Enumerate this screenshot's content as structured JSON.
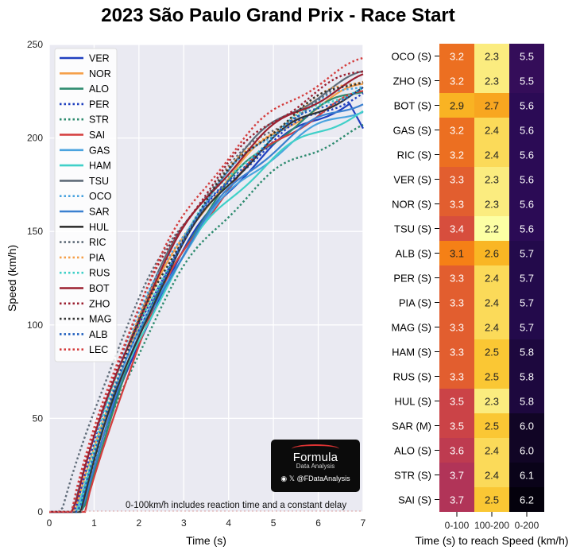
{
  "title": "2023 São Paulo Grand Prix - Race Start",
  "watermark": {
    "brand": "Formula",
    "sub": "Data Analysis",
    "handle": "@FDataAnalysis"
  },
  "note": "0-100km/h includes reaction time and a constant delay",
  "chart_data": [
    {
      "type": "line",
      "xlabel": "Time (s)",
      "ylabel": "Speed (km/h)",
      "xlim": [
        0,
        7
      ],
      "ylim": [
        0,
        250
      ],
      "xticks": [
        0,
        1,
        2,
        3,
        4,
        5,
        6,
        7
      ],
      "yticks": [
        0,
        50,
        100,
        150,
        200,
        250
      ],
      "grid": true,
      "legend": "top-left",
      "series": [
        {
          "name": "VER",
          "color": "#1f3fbf",
          "dash": "solid",
          "t0": 0.75,
          "end": 222,
          "drop": true
        },
        {
          "name": "NOR",
          "color": "#f5a04a",
          "dash": "solid",
          "t0": 0.6,
          "end": 228
        },
        {
          "name": "ALO",
          "color": "#2e8b6f",
          "dash": "solid",
          "t0": 0.75,
          "end": 226
        },
        {
          "name": "PER",
          "color": "#1f3fbf",
          "dash": "dot",
          "t0": 0.55,
          "end": 224
        },
        {
          "name": "STR",
          "color": "#2e8b6f",
          "dash": "dot",
          "t0": 0.7,
          "end": 205
        },
        {
          "name": "SAI",
          "color": "#d43d3d",
          "dash": "solid",
          "t0": 0.8,
          "end": 224
        },
        {
          "name": "GAS",
          "color": "#4aa3df",
          "dash": "solid",
          "t0": 0.6,
          "end": 216
        },
        {
          "name": "HAM",
          "color": "#40d0c8",
          "dash": "solid",
          "t0": 0.65,
          "end": 214
        },
        {
          "name": "TSU",
          "color": "#5f6b78",
          "dash": "solid",
          "t0": 0.55,
          "end": 234
        },
        {
          "name": "OCO",
          "color": "#4aa3df",
          "dash": "dot",
          "t0": 0.5,
          "end": 229
        },
        {
          "name": "SAR",
          "color": "#3a80d0",
          "dash": "solid",
          "t0": 0.7,
          "end": 220
        },
        {
          "name": "HUL",
          "color": "#333333",
          "dash": "solid",
          "t0": 0.7,
          "end": 226
        },
        {
          "name": "RIC",
          "color": "#5f6b78",
          "dash": "dot",
          "t0": 0.3,
          "end": 230
        },
        {
          "name": "PIA",
          "color": "#f5a04a",
          "dash": "dot",
          "t0": 0.6,
          "end": 232
        },
        {
          "name": "RUS",
          "color": "#40d0c8",
          "dash": "dot",
          "t0": 0.6,
          "end": 228
        },
        {
          "name": "BOT",
          "color": "#9b2030",
          "dash": "solid",
          "t0": 0.55,
          "end": 232
        },
        {
          "name": "ZHO",
          "color": "#9b2030",
          "dash": "dot",
          "t0": 0.5,
          "end": 236
        },
        {
          "name": "MAG",
          "color": "#333333",
          "dash": "dot",
          "t0": 0.65,
          "end": 232
        },
        {
          "name": "ALB",
          "color": "#1f5fbf",
          "dash": "dot",
          "t0": 0.65,
          "end": 227
        },
        {
          "name": "LEC",
          "color": "#d43d3d",
          "dash": "dot",
          "t0": 0.5,
          "end": 241
        }
      ]
    },
    {
      "type": "heatmap",
      "xlabel": "Time (s) to reach Speed (km/h)",
      "columns": [
        "0-100",
        "100-200",
        "0-200"
      ],
      "rows": [
        "OCO (S)",
        "ZHO (S)",
        "BOT (S)",
        "GAS (S)",
        "RIC (S)",
        "VER (S)",
        "NOR (S)",
        "TSU (S)",
        "ALB (S)",
        "PER (S)",
        "PIA (S)",
        "MAG (S)",
        "HAM (S)",
        "RUS (S)",
        "HUL (S)",
        "SAR (M)",
        "ALO (S)",
        "STR (S)",
        "SAI (S)"
      ],
      "values": [
        [
          3.2,
          2.3,
          5.5
        ],
        [
          3.2,
          2.3,
          5.5
        ],
        [
          2.9,
          2.7,
          5.6
        ],
        [
          3.2,
          2.4,
          5.6
        ],
        [
          3.2,
          2.4,
          5.6
        ],
        [
          3.3,
          2.3,
          5.6
        ],
        [
          3.3,
          2.3,
          5.6
        ],
        [
          3.4,
          2.2,
          5.6
        ],
        [
          3.1,
          2.6,
          5.7
        ],
        [
          3.3,
          2.4,
          5.7
        ],
        [
          3.3,
          2.4,
          5.7
        ],
        [
          3.3,
          2.4,
          5.7
        ],
        [
          3.3,
          2.5,
          5.8
        ],
        [
          3.3,
          2.5,
          5.8
        ],
        [
          3.5,
          2.3,
          5.8
        ],
        [
          3.5,
          2.5,
          6.0
        ],
        [
          3.6,
          2.4,
          6.0
        ],
        [
          3.7,
          2.4,
          6.1
        ],
        [
          3.7,
          2.5,
          6.2
        ]
      ]
    }
  ]
}
